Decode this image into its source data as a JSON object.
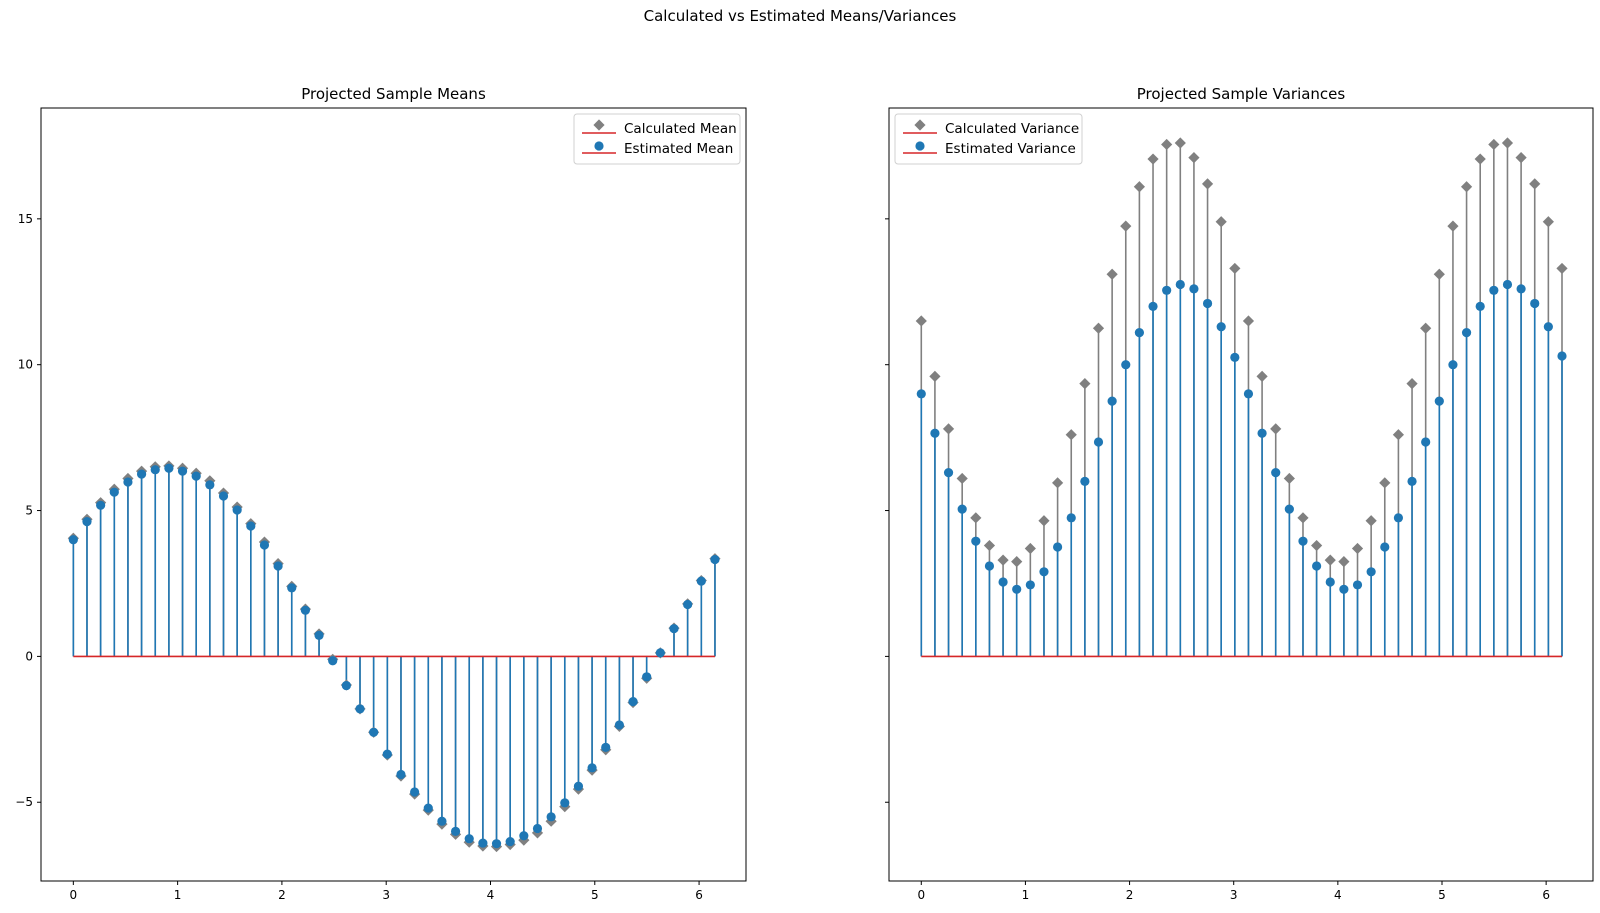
{
  "figure": {
    "title": "Calculated vs Estimated Means/Variances"
  },
  "colors": {
    "calculated": "#808080",
    "estimated": "#1f77b4",
    "baseline": "#d62728"
  },
  "chart_data": [
    {
      "type": "stem",
      "title": "Projected Sample Means",
      "xlim": [
        -0.31,
        6.45
      ],
      "ylim": [
        -7.7,
        18.8
      ],
      "xticks": [
        0,
        1,
        2,
        3,
        4,
        5,
        6
      ],
      "yticks": [
        -5,
        0,
        5,
        10,
        15
      ],
      "ytick_labels": [
        "−5",
        "0",
        "5",
        "10",
        "15"
      ],
      "legend_position": "upper right",
      "x": [
        0.0,
        0.1309,
        0.2618,
        0.3927,
        0.5236,
        0.6545,
        0.7854,
        0.9163,
        1.0472,
        1.1781,
        1.309,
        1.4399,
        1.5708,
        1.7017,
        1.8326,
        1.9635,
        2.0944,
        2.2253,
        2.3562,
        2.4871,
        2.618,
        2.7489,
        2.8798,
        3.0107,
        3.1416,
        3.2725,
        3.4034,
        3.5343,
        3.6652,
        3.7961,
        3.927,
        4.0579,
        4.1888,
        4.3197,
        4.4506,
        4.5815,
        4.7124,
        4.8433,
        4.9742,
        5.1051,
        5.236,
        5.3669,
        5.4978,
        5.6287,
        5.7596,
        5.8905,
        6.0214,
        6.1523
      ],
      "series": [
        {
          "name": "Calculated Mean",
          "marker": "diamond",
          "values": [
            4.05,
            4.7,
            5.27,
            5.73,
            6.1,
            6.35,
            6.5,
            6.53,
            6.45,
            6.28,
            6.02,
            5.6,
            5.12,
            4.55,
            3.92,
            3.18,
            2.4,
            1.62,
            0.77,
            -0.1,
            -0.98,
            -1.8,
            -2.6,
            -3.38,
            -4.1,
            -4.72,
            -5.27,
            -5.75,
            -6.1,
            -6.37,
            -6.5,
            -6.52,
            -6.45,
            -6.3,
            -6.05,
            -5.65,
            -5.15,
            -4.55,
            -3.9,
            -3.2,
            -2.4,
            -1.58,
            -0.75,
            0.12,
            0.97,
            1.8,
            2.6,
            3.35
          ]
        },
        {
          "name": "Estimated Mean",
          "marker": "circle",
          "values": [
            4.0,
            4.62,
            5.18,
            5.63,
            5.98,
            6.25,
            6.4,
            6.45,
            6.35,
            6.18,
            5.88,
            5.5,
            5.02,
            4.47,
            3.82,
            3.1,
            2.35,
            1.58,
            0.72,
            -0.15,
            -1.0,
            -1.8,
            -2.6,
            -3.35,
            -4.05,
            -4.65,
            -5.2,
            -5.65,
            -6.0,
            -6.25,
            -6.4,
            -6.42,
            -6.35,
            -6.15,
            -5.9,
            -5.5,
            -5.02,
            -4.45,
            -3.82,
            -3.12,
            -2.35,
            -1.55,
            -0.7,
            0.12,
            0.95,
            1.78,
            2.58,
            3.32
          ]
        }
      ]
    },
    {
      "type": "stem",
      "title": "Projected Sample Variances",
      "xlim": [
        -0.31,
        6.45
      ],
      "ylim": [
        -7.7,
        18.8
      ],
      "xticks": [
        0,
        1,
        2,
        3,
        4,
        5,
        6
      ],
      "yticks": [
        -5,
        0,
        5,
        10,
        15
      ],
      "legend_position": "upper left",
      "x": [
        0.0,
        0.1309,
        0.2618,
        0.3927,
        0.5236,
        0.6545,
        0.7854,
        0.9163,
        1.0472,
        1.1781,
        1.309,
        1.4399,
        1.5708,
        1.7017,
        1.8326,
        1.9635,
        2.0944,
        2.2253,
        2.3562,
        2.4871,
        2.618,
        2.7489,
        2.8798,
        3.0107,
        3.1416,
        3.2725,
        3.4034,
        3.5343,
        3.6652,
        3.7961,
        3.927,
        4.0579,
        4.1888,
        4.3197,
        4.4506,
        4.5815,
        4.7124,
        4.8433,
        4.9742,
        5.1051,
        5.236,
        5.3669,
        5.4978,
        5.6287,
        5.7596,
        5.8905,
        6.0214,
        6.1523
      ],
      "series": [
        {
          "name": "Calculated Variance",
          "marker": "diamond",
          "values": [
            11.5,
            9.6,
            7.8,
            6.1,
            4.75,
            3.8,
            3.3,
            3.25,
            3.7,
            4.65,
            5.95,
            7.6,
            9.35,
            11.25,
            13.1,
            14.75,
            16.1,
            17.05,
            17.55,
            17.6,
            17.1,
            16.2,
            14.9,
            13.3,
            11.5,
            9.6,
            7.8,
            6.1,
            4.75,
            3.8,
            3.3,
            3.25,
            3.7,
            4.65,
            5.95,
            7.6,
            9.35,
            11.25,
            13.1,
            14.75,
            16.1,
            17.05,
            17.55,
            17.6,
            17.1,
            16.2,
            14.9,
            13.3
          ]
        },
        {
          "name": "Estimated Variance",
          "marker": "circle",
          "values": [
            9.0,
            7.65,
            6.3,
            5.05,
            3.95,
            3.1,
            2.55,
            2.3,
            2.45,
            2.9,
            3.75,
            4.75,
            6.0,
            7.35,
            8.75,
            10.0,
            11.1,
            12.0,
            12.55,
            12.75,
            12.6,
            12.1,
            11.3,
            10.25,
            9.0,
            7.65,
            6.3,
            5.05,
            3.95,
            3.1,
            2.55,
            2.3,
            2.45,
            2.9,
            3.75,
            4.75,
            6.0,
            7.35,
            8.75,
            10.0,
            11.1,
            12.0,
            12.55,
            12.75,
            12.6,
            12.1,
            11.3,
            10.3
          ]
        }
      ]
    }
  ]
}
